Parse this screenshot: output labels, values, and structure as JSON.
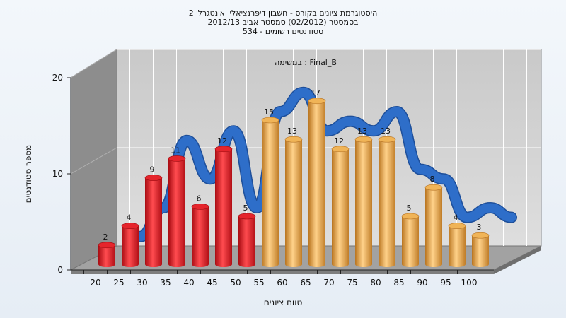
{
  "chart_data": {
    "type": "bar",
    "title_lines": [
      "היסטוגרמת ציונים בקורס - חשבון דיפרנציאלי ואינטגרלי 2",
      "בסמסטר  (02/2012)  סמסטר אביב 2012/13",
      "סטודנטים רשומים - 534"
    ],
    "legend_text": "במשימה : Final_B",
    "xlabel": "טווח ציונים",
    "ylabel": "מספר סטודנטים",
    "ylim": [
      0,
      20
    ],
    "y_ticks": [
      0,
      10,
      20
    ],
    "categories": [
      "20",
      "25",
      "30",
      "35",
      "40",
      "45",
      "50",
      "55",
      "60",
      "65",
      "70",
      "75",
      "80",
      "85",
      "90",
      "95",
      "100"
    ],
    "values": [
      2,
      4,
      9,
      11,
      6,
      12,
      5,
      15,
      13,
      17,
      12,
      13,
      13,
      5,
      8,
      4,
      3
    ],
    "fail_count": 7,
    "trend_values": [
      null,
      2,
      5,
      12,
      8,
      13,
      5,
      15,
      17,
      13,
      14,
      13,
      15,
      9,
      8,
      4,
      5
    ],
    "colors": {
      "fail": "#e8202a",
      "pass": "#e9a845",
      "trend": "#2e6ec9",
      "back_wall": "#d4d4d4",
      "side_wall": "#8d8d8d",
      "floor": "#9a9a9a"
    }
  }
}
